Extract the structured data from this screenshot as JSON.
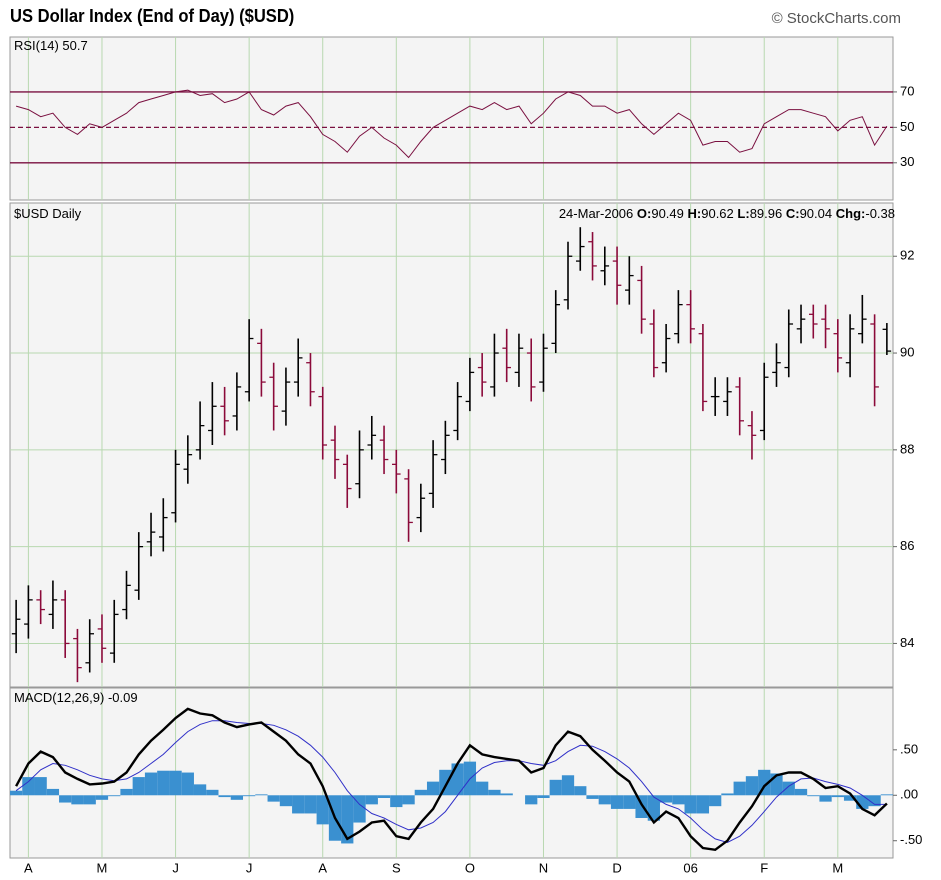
{
  "chart_data": {
    "type": "ohlc",
    "title": "US Dollar Index (End of Day) ($USD)",
    "source": "© StockCharts.com",
    "symbol_label": "$USD Daily",
    "date": "24-Mar-2006",
    "ohlc_labels": [
      "O:",
      "H:",
      "L:",
      "C:",
      "Chg:"
    ],
    "change": -0.38,
    "categories": [
      null,
      "A",
      null,
      null,
      null,
      null,
      null,
      "M",
      null,
      null,
      null,
      null,
      null,
      "J",
      null,
      null,
      null,
      null,
      null,
      "J",
      null,
      null,
      null,
      null,
      null,
      "A",
      null,
      null,
      null,
      null,
      null,
      "S",
      null,
      null,
      null,
      null,
      null,
      "O",
      null,
      null,
      null,
      null,
      null,
      "N",
      null,
      null,
      null,
      null,
      null,
      "D",
      null,
      null,
      null,
      null,
      null,
      "06",
      null,
      null,
      null,
      null,
      null,
      "F",
      null,
      null,
      null,
      null,
      null,
      "M",
      null,
      null,
      null,
      null
    ],
    "open": [
      84.2,
      84.4,
      84.9,
      84.6,
      84.9,
      84.1,
      83.6,
      84.3,
      83.8,
      84.7,
      85.1,
      86.1,
      86.2,
      86.7,
      87.6,
      88.0,
      88.4,
      88.9,
      88.7,
      89.2,
      90.2,
      89.5,
      88.8,
      89.4,
      89.8,
      89.1,
      88.2,
      87.7,
      87.3,
      88.1,
      88.2,
      87.7,
      87.4,
      86.6,
      87.1,
      87.8,
      88.4,
      89.0,
      89.7,
      89.3,
      90.1,
      89.6,
      90.0,
      89.4,
      90.2,
      91.1,
      91.9,
      92.3,
      91.7,
      91.9,
      91.3,
      91.5,
      90.6,
      89.8,
      90.4,
      91.0,
      90.4,
      89.1,
      89.0,
      89.3,
      88.5,
      88.4,
      89.6,
      89.7,
      90.5,
      90.8,
      90.7,
      90.4,
      89.8,
      90.4,
      90.6,
      90.49
    ],
    "high": [
      84.9,
      85.2,
      85.1,
      85.3,
      85.1,
      84.3,
      84.5,
      84.6,
      84.9,
      85.5,
      86.3,
      86.7,
      87.0,
      88.0,
      88.3,
      89.0,
      89.4,
      89.3,
      89.6,
      90.7,
      90.5,
      89.8,
      89.7,
      90.3,
      90.0,
      89.3,
      88.5,
      87.9,
      88.4,
      88.7,
      88.5,
      88.0,
      87.6,
      87.3,
      88.2,
      88.6,
      89.4,
      89.9,
      90.0,
      90.4,
      90.5,
      90.4,
      90.3,
      90.4,
      91.3,
      92.3,
      92.6,
      92.5,
      92.2,
      92.2,
      92.0,
      91.8,
      90.9,
      90.6,
      91.3,
      91.3,
      90.6,
      89.5,
      89.5,
      89.5,
      88.8,
      89.8,
      90.2,
      90.9,
      91.0,
      91.0,
      91.0,
      90.7,
      90.8,
      91.2,
      90.8,
      90.62
    ],
    "low": [
      83.8,
      84.1,
      84.4,
      84.3,
      83.7,
      83.2,
      83.4,
      83.6,
      83.6,
      84.5,
      84.9,
      85.8,
      85.9,
      86.5,
      87.3,
      87.8,
      88.1,
      88.3,
      88.4,
      89.0,
      89.1,
      88.4,
      88.5,
      89.1,
      88.9,
      87.8,
      87.4,
      86.8,
      87.0,
      87.8,
      87.5,
      87.1,
      86.1,
      86.3,
      86.8,
      87.5,
      88.2,
      88.8,
      89.1,
      89.1,
      89.4,
      89.3,
      89.0,
      89.2,
      90.0,
      90.9,
      91.7,
      91.5,
      91.4,
      91.0,
      91.0,
      90.4,
      89.5,
      89.6,
      90.2,
      90.2,
      88.8,
      88.7,
      88.7,
      88.3,
      87.8,
      88.2,
      89.3,
      89.5,
      90.2,
      90.3,
      90.1,
      89.6,
      89.5,
      90.2,
      88.9,
      89.96
    ],
    "close": [
      84.5,
      84.9,
      84.7,
      84.9,
      84.0,
      83.5,
      84.2,
      83.9,
      84.6,
      85.2,
      86.0,
      86.3,
      86.6,
      87.7,
      87.9,
      88.5,
      88.9,
      88.6,
      89.3,
      90.3,
      89.4,
      88.9,
      89.4,
      89.9,
      89.2,
      88.1,
      87.8,
      87.2,
      88.0,
      88.3,
      87.8,
      87.5,
      86.5,
      87.0,
      87.9,
      88.3,
      89.1,
      89.6,
      89.4,
      90.0,
      89.7,
      90.1,
      89.3,
      90.1,
      91.0,
      92.0,
      92.2,
      91.8,
      91.8,
      91.4,
      91.6,
      90.7,
      89.7,
      90.3,
      91.0,
      90.5,
      89.0,
      89.1,
      89.2,
      88.6,
      88.3,
      89.5,
      89.8,
      90.6,
      90.7,
      90.6,
      90.5,
      89.9,
      90.5,
      90.7,
      89.3,
      90.04
    ],
    "up_color": "#000000",
    "down_color": "#8b0a3a",
    "grid_color": "#b8d8b0",
    "ylim": [
      83.1,
      93.1
    ],
    "yticks": [
      84,
      86,
      88,
      90,
      92
    ],
    "grid": true,
    "rsi": {
      "label": "RSI(14)",
      "color": "#7a1040",
      "values": [
        62,
        60,
        56,
        58,
        50,
        46,
        52,
        50,
        54,
        58,
        64,
        66,
        68,
        70,
        71,
        68,
        69,
        64,
        66,
        70,
        60,
        57,
        62,
        64,
        56,
        46,
        42,
        36,
        45,
        50,
        44,
        40,
        33,
        42,
        50,
        54,
        58,
        62,
        60,
        64,
        60,
        62,
        52,
        58,
        66,
        70,
        68,
        62,
        62,
        58,
        60,
        52,
        46,
        52,
        58,
        54,
        40,
        42,
        42,
        36,
        38,
        52,
        56,
        60,
        60,
        58,
        56,
        48,
        54,
        56,
        40,
        50.7
      ],
      "ylim": [
        9,
        101
      ],
      "yticks": [
        30,
        50,
        70
      ]
    },
    "macd": {
      "label": "MACD(12,26,9)",
      "color": "#000000",
      "signal_color": "#3030c8",
      "histogram_color": "#3a90d0",
      "values": [
        0.1,
        0.35,
        0.48,
        0.42,
        0.25,
        0.18,
        0.12,
        0.13,
        0.15,
        0.25,
        0.45,
        0.6,
        0.72,
        0.85,
        0.95,
        0.9,
        0.88,
        0.8,
        0.75,
        0.78,
        0.8,
        0.7,
        0.6,
        0.45,
        0.35,
        0.1,
        -0.25,
        -0.48,
        -0.4,
        -0.3,
        -0.28,
        -0.45,
        -0.48,
        -0.3,
        -0.15,
        0.1,
        0.35,
        0.55,
        0.45,
        0.42,
        0.4,
        0.38,
        0.25,
        0.3,
        0.55,
        0.7,
        0.65,
        0.5,
        0.38,
        0.25,
        0.15,
        -0.1,
        -0.3,
        -0.18,
        -0.25,
        -0.45,
        -0.58,
        -0.6,
        -0.5,
        -0.3,
        -0.12,
        0.1,
        0.22,
        0.25,
        0.25,
        0.18,
        0.08,
        0.1,
        0.02,
        -0.15,
        -0.22,
        -0.09
      ],
      "signal": [
        0.05,
        0.15,
        0.28,
        0.35,
        0.33,
        0.28,
        0.22,
        0.18,
        0.16,
        0.18,
        0.25,
        0.35,
        0.45,
        0.58,
        0.7,
        0.78,
        0.82,
        0.82,
        0.8,
        0.79,
        0.79,
        0.77,
        0.72,
        0.65,
        0.55,
        0.42,
        0.25,
        0.05,
        -0.1,
        -0.2,
        -0.25,
        -0.32,
        -0.38,
        -0.36,
        -0.3,
        -0.18,
        0.0,
        0.18,
        0.3,
        0.36,
        0.38,
        0.38,
        0.35,
        0.33,
        0.38,
        0.48,
        0.55,
        0.54,
        0.48,
        0.4,
        0.3,
        0.15,
        -0.02,
        -0.1,
        -0.15,
        -0.25,
        -0.38,
        -0.48,
        -0.52,
        -0.45,
        -0.33,
        -0.18,
        -0.02,
        0.1,
        0.18,
        0.19,
        0.15,
        0.12,
        0.08,
        0.0,
        -0.1,
        -0.1
      ],
      "histogram": [
        0.05,
        0.2,
        0.2,
        0.07,
        -0.08,
        -0.1,
        -0.1,
        -0.05,
        -0.01,
        0.07,
        0.2,
        0.25,
        0.27,
        0.27,
        0.25,
        0.12,
        0.06,
        -0.02,
        -0.05,
        -0.01,
        0.01,
        -0.07,
        -0.12,
        -0.2,
        -0.2,
        -0.32,
        -0.5,
        -0.53,
        -0.3,
        -0.1,
        -0.03,
        -0.13,
        -0.1,
        0.06,
        0.15,
        0.28,
        0.35,
        0.37,
        0.15,
        0.06,
        0.02,
        0.0,
        -0.1,
        -0.03,
        0.17,
        0.22,
        0.1,
        -0.04,
        -0.1,
        -0.15,
        -0.15,
        -0.25,
        -0.28,
        -0.08,
        -0.1,
        -0.2,
        -0.2,
        -0.12,
        0.02,
        0.15,
        0.21,
        0.28,
        0.24,
        0.15,
        0.07,
        -0.01,
        -0.07,
        -0.02,
        -0.06,
        -0.15,
        -0.12,
        0.01
      ],
      "ylim": [
        -0.69,
        1.18
      ],
      "yticks": [
        {
          "value": 0.5,
          "label": ".50"
        },
        {
          "value": 0,
          "label": ".00"
        },
        {
          "value": -0.5,
          "label": "-.50"
        }
      ]
    }
  }
}
